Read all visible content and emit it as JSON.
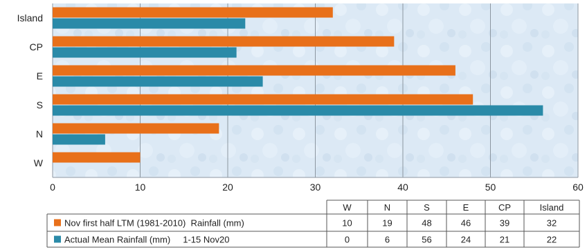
{
  "chart_data": {
    "type": "bar",
    "orientation": "horizontal",
    "categories": [
      "Island",
      "CP",
      "E",
      "S",
      "N",
      "W"
    ],
    "series": [
      {
        "name": "Nov first half LTM (1981-2010)  Rainfall (mm)",
        "color": "#E8701A",
        "values": [
          32,
          39,
          46,
          48,
          19,
          10
        ]
      },
      {
        "name": "Actual Mean Rainfall (mm)     1-15 Nov20",
        "color": "#2A8AA8",
        "values": [
          22,
          21,
          24,
          56,
          6,
          0
        ]
      }
    ],
    "xlim": [
      0,
      60
    ],
    "xticks": [
      "0",
      "10",
      "20",
      "30",
      "40",
      "50",
      "60"
    ],
    "grid": true,
    "legend": "data-table-below",
    "table": {
      "headers": [
        "W",
        "N",
        "S",
        "E",
        "CP",
        "Island"
      ],
      "rows": [
        [
          "10",
          "19",
          "48",
          "46",
          "39",
          "32"
        ],
        [
          "0",
          "6",
          "56",
          "24",
          "21",
          "22"
        ]
      ]
    }
  }
}
